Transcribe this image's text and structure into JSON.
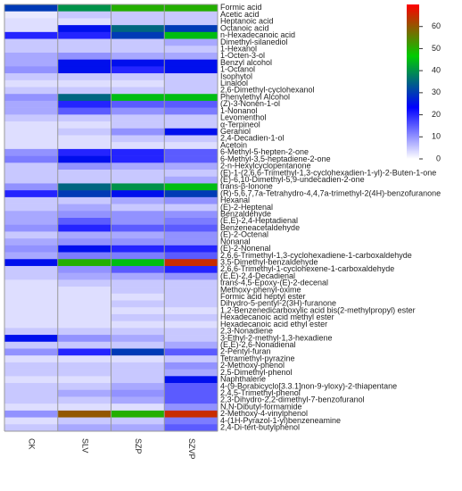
{
  "chart_data": {
    "type": "heatmap",
    "columns": [
      "CK",
      "SLV",
      "SZP",
      "SZVP"
    ],
    "rows": [
      "Formic acid",
      "Acetic acid",
      "Heptanoic acid",
      "Octanoic acid",
      "n-Hexadecanoic acid",
      "Dimethyl-silanediol",
      "1-Hexanol",
      "1-Octen-3-ol",
      "Benzyl alcohol",
      "1-Octanol",
      "Isophytol",
      "Linalool",
      "2,6-Dimethyl-cyclohexanol",
      "Phenylethyl Alcohol",
      "(Z)-3-Nonen-1-ol",
      "1-Nonanol",
      "Levomenthol",
      "α-Terpineol",
      "Geraniol",
      "2,4-Decadien-1-ol",
      "Acetoin",
      "6-Methyl-5-hepten-2-one",
      "6-Methyl-3,5-heptadiene-2-one",
      "2-n-Hexylcyclopentanone",
      "(E)-1-(2,6,6-Trimethyl-1,3-cyclohexadien-1-yl)-2-Buten-1-one",
      "(E)-6,10-Dimethyl-5,9-undecadien-2-one",
      "trans-β-Ionone",
      "(R)-5,6,7,7a-Tetrahydro-4,4,7a-trimethyl-2(4H)-benzofuranone",
      "Hexanal",
      "(E)-2-Heptenal",
      "Benzaldehyde",
      "(E,E)-2,4-Heptadienal",
      "Benzeneacetaldehyde",
      "(E)-2-Octenal",
      "Nonanal",
      "(E)-2-Nonenal",
      "2,6,6-Trimethyl-1,3-cyclohexadiene-1-carboxaldehyde",
      "3,5-Dimethyl-benzaldehyde",
      "2,6,6-Trimethyl-1-cyclohexene-1-carboxaldehyde",
      "(E,E)-2,4-Decadienal",
      "trans-4,5-Epoxy-(E)-2-decenal",
      "Methoxy-phenyl-oxime",
      "Formic acid heptyl ester",
      "Dihydro-5-pentyl-2(3H)-furanone",
      "1,2-Benzenedicarboxylic acid  bis(2-methylpropyl) ester",
      "Hexadecanoic acid  methyl ester",
      "Hexadecanoic acid  ethyl ester",
      "2,3-Nonadiene",
      "3-Ethyl-2-methyl-1,3-hexadiene",
      "(E,E)-2,6-Nonadienal",
      "2-Pentyl-furan",
      "Tetramethyl-pyrazine",
      "2-Methoxy-phenol",
      "2,5-Dimethyl-phenol",
      "Naphthalene",
      "4-(9-Borabicyclo[3.3.1]non-9-yloxy)-2-thiapentane",
      "2,4,5-Trimethyl-phenol",
      "2,3-Dihydro-2,2-dimethyl-7-benzofuranol",
      "N,N-Dibutyl-formamide",
      "2-Methoxy-4-vinylphenol",
      "4-(1H-Pyrazol-1-yl)benzeneamine",
      "2,4-Di-tert-butylphenol"
    ],
    "values": [
      [
        30,
        40,
        50,
        50
      ],
      [
        2,
        5,
        5,
        5
      ],
      [
        3,
        3,
        5,
        5
      ],
      [
        3,
        25,
        35,
        30
      ],
      [
        20,
        20,
        30,
        45
      ],
      [
        5,
        5,
        5,
        8
      ],
      [
        5,
        5,
        5,
        5
      ],
      [
        8,
        10,
        8,
        8
      ],
      [
        8,
        25,
        25,
        25
      ],
      [
        10,
        25,
        20,
        25
      ],
      [
        5,
        5,
        5,
        5
      ],
      [
        3,
        3,
        3,
        5
      ],
      [
        5,
        5,
        5,
        5
      ],
      [
        10,
        35,
        45,
        45
      ],
      [
        8,
        20,
        15,
        15
      ],
      [
        8,
        15,
        10,
        12
      ],
      [
        5,
        5,
        5,
        5
      ],
      [
        3,
        3,
        5,
        5
      ],
      [
        3,
        5,
        10,
        25
      ],
      [
        3,
        3,
        5,
        5
      ],
      [
        3,
        3,
        3,
        3
      ],
      [
        10,
        20,
        20,
        15
      ],
      [
        12,
        25,
        20,
        15
      ],
      [
        5,
        10,
        8,
        8
      ],
      [
        5,
        5,
        5,
        5
      ],
      [
        5,
        5,
        5,
        8
      ],
      [
        10,
        35,
        40,
        45
      ],
      [
        20,
        30,
        25,
        30
      ],
      [
        5,
        5,
        8,
        10
      ],
      [
        5,
        8,
        5,
        5
      ],
      [
        8,
        10,
        10,
        10
      ],
      [
        8,
        15,
        10,
        12
      ],
      [
        10,
        20,
        15,
        15
      ],
      [
        5,
        8,
        8,
        10
      ],
      [
        8,
        10,
        10,
        10
      ],
      [
        10,
        25,
        20,
        20
      ],
      [
        8,
        12,
        12,
        15
      ],
      [
        25,
        50,
        45,
        65
      ],
      [
        5,
        10,
        15,
        20
      ],
      [
        5,
        8,
        8,
        10
      ],
      [
        3,
        5,
        5,
        5
      ],
      [
        3,
        3,
        5,
        5
      ],
      [
        3,
        3,
        3,
        5
      ],
      [
        3,
        3,
        5,
        5
      ],
      [
        3,
        3,
        3,
        3
      ],
      [
        3,
        3,
        5,
        5
      ],
      [
        3,
        3,
        3,
        3
      ],
      [
        5,
        5,
        5,
        5
      ],
      [
        25,
        10,
        8,
        5
      ],
      [
        5,
        5,
        5,
        8
      ],
      [
        10,
        20,
        30,
        15
      ],
      [
        3,
        3,
        3,
        5
      ],
      [
        5,
        5,
        5,
        10
      ],
      [
        5,
        5,
        5,
        8
      ],
      [
        3,
        3,
        5,
        25
      ],
      [
        5,
        5,
        8,
        15
      ],
      [
        5,
        8,
        10,
        15
      ],
      [
        5,
        5,
        8,
        15
      ],
      [
        3,
        3,
        3,
        10
      ],
      [
        10,
        60,
        50,
        65
      ],
      [
        3,
        5,
        5,
        12
      ],
      [
        5,
        8,
        8,
        15
      ]
    ],
    "colorscale": [
      "#ffffff",
      "#0000ff",
      "#00cc00",
      "#ff0000"
    ],
    "clim": [
      0,
      70
    ],
    "cticks": [
      0,
      10,
      20,
      30,
      40,
      50,
      60
    ]
  }
}
